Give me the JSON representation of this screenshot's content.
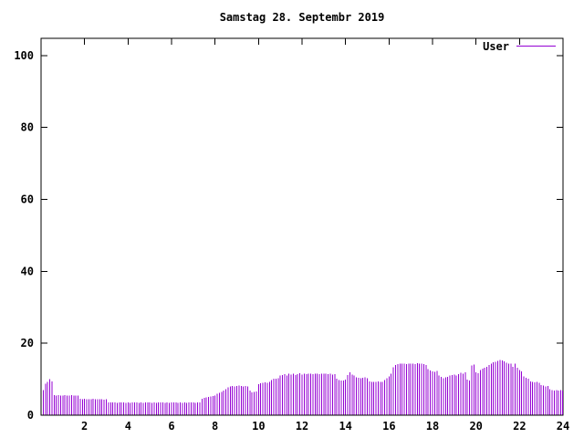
{
  "window": {
    "background": "#ffffff"
  },
  "chart_data": {
    "type": "bar",
    "style": "impulses",
    "title": "Samstag 28. Septembr 2019",
    "xlabel": "",
    "ylabel": "",
    "xlim": [
      0,
      24
    ],
    "ylim": [
      0,
      104.8
    ],
    "x_ticks": [
      2,
      4,
      6,
      8,
      10,
      12,
      14,
      16,
      18,
      20,
      22,
      24
    ],
    "y_ticks": [
      0,
      20,
      40,
      60,
      80,
      100
    ],
    "grid": false,
    "legend_position": "top-right",
    "colors": {
      "series": "#9400d3",
      "axis": "#000000",
      "background": "#ffffff"
    },
    "x_start": 0.1,
    "x_step": 0.1,
    "series": [
      {
        "name": "User",
        "values": [
          7.0,
          8.8,
          9.2,
          10.0,
          9.4,
          5.6,
          5.5,
          5.6,
          5.5,
          5.5,
          5.6,
          5.5,
          5.4,
          5.6,
          5.5,
          5.5,
          5.4,
          4.6,
          4.5,
          4.6,
          4.5,
          4.4,
          4.5,
          4.6,
          4.5,
          4.4,
          4.5,
          4.4,
          4.3,
          4.4,
          3.6,
          3.5,
          3.6,
          3.5,
          3.4,
          3.5,
          3.6,
          3.5,
          3.4,
          3.5,
          3.4,
          3.5,
          3.6,
          3.5,
          3.4,
          3.5,
          3.4,
          3.5,
          3.6,
          3.5,
          3.4,
          3.5,
          3.4,
          3.5,
          3.6,
          3.5,
          3.4,
          3.5,
          3.4,
          3.5,
          3.6,
          3.5,
          3.4,
          3.5,
          3.4,
          3.5,
          3.4,
          3.5,
          3.6,
          3.5,
          3.4,
          3.5,
          3.6,
          4.6,
          4.8,
          4.9,
          5.1,
          5.2,
          5.3,
          5.5,
          5.9,
          6.2,
          6.5,
          6.8,
          7.2,
          7.8,
          8.0,
          8.1,
          8.0,
          8.1,
          8.2,
          8.1,
          8.0,
          8.1,
          8.0,
          6.8,
          6.4,
          6.5,
          6.6,
          8.6,
          8.9,
          9.0,
          9.1,
          9.0,
          9.2,
          9.8,
          10.1,
          10.2,
          10.3,
          11.0,
          11.2,
          11.4,
          11.1,
          11.5,
          11.3,
          11.6,
          11.2,
          11.4,
          11.7,
          11.3,
          11.5,
          11.4,
          11.6,
          11.5,
          11.4,
          11.5,
          11.6,
          11.4,
          11.5,
          11.6,
          11.5,
          11.4,
          11.5,
          11.3,
          11.4,
          10.2,
          9.8,
          9.6,
          9.7,
          9.9,
          11.2,
          11.9,
          11.3,
          11.0,
          10.5,
          10.4,
          10.3,
          10.4,
          10.5,
          10.3,
          9.4,
          9.3,
          9.2,
          9.3,
          9.4,
          9.3,
          9.2,
          9.8,
          10.3,
          10.8,
          11.5,
          13.3,
          13.9,
          14.2,
          14.4,
          14.3,
          14.4,
          14.2,
          14.4,
          14.3,
          14.4,
          14.2,
          14.5,
          14.3,
          14.4,
          14.2,
          13.9,
          12.8,
          12.4,
          12.2,
          12.0,
          12.3,
          11.0,
          10.6,
          10.3,
          10.5,
          10.7,
          11.0,
          11.2,
          11.3,
          11.1,
          11.4,
          11.8,
          11.6,
          11.9,
          9.9,
          9.7,
          13.8,
          14.1,
          11.9,
          11.7,
          12.6,
          13.0,
          13.2,
          13.4,
          14.0,
          14.4,
          14.7,
          14.9,
          15.1,
          15.3,
          15.2,
          15.0,
          14.6,
          14.4,
          14.3,
          13.4,
          14.3,
          13.2,
          12.5,
          12.2,
          10.8,
          10.4,
          10.2,
          9.4,
          9.2,
          9.1,
          9.2,
          9.0,
          8.4,
          8.2,
          8.0,
          8.1,
          7.2,
          7.0,
          6.9,
          7.0,
          6.9,
          7.0,
          6.8
        ]
      }
    ]
  }
}
